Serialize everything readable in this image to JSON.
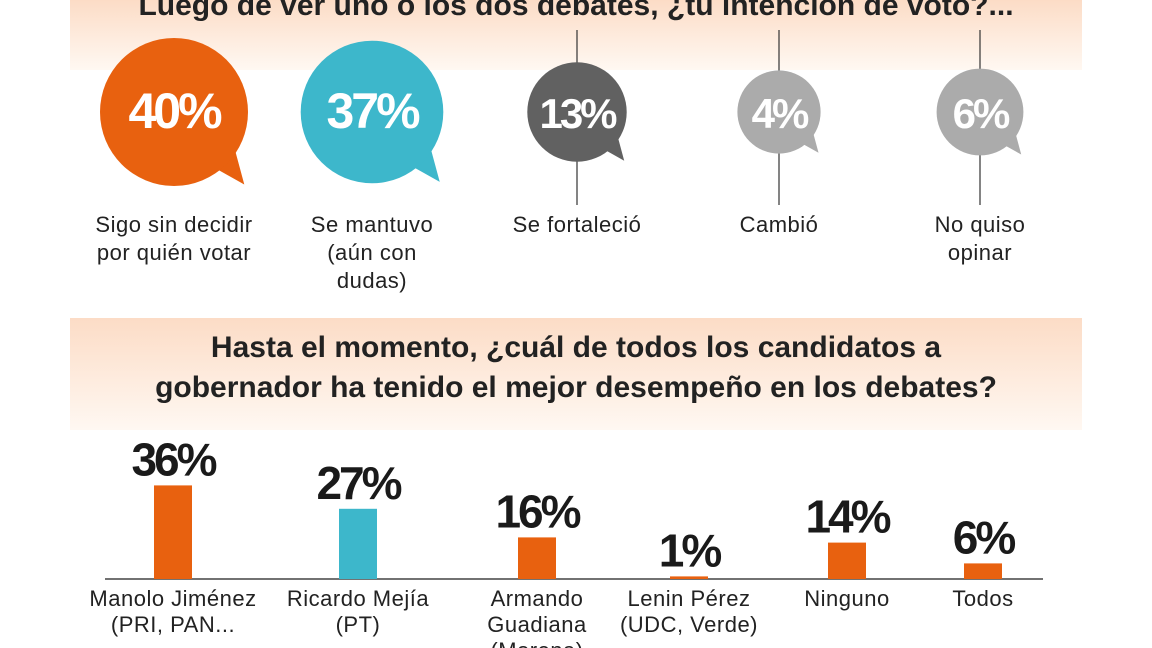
{
  "chart_data": [
    {
      "type": "callout",
      "title": "Luego de ver uno o los dos debates, ¿tu intención de voto?...",
      "categories": [
        "Sigo sin decidir por quién votar",
        "Se mantuvo (aún con dudas)",
        "Se fortaleció",
        "Cambió",
        "No quiso opinar"
      ],
      "values": [
        40,
        37,
        13,
        4,
        6
      ],
      "value_labels": [
        "40%",
        "37%",
        "13%",
        "4%",
        "6%"
      ],
      "colors": [
        "#e8610f",
        "#3db7cb",
        "#616161",
        "#ababab",
        "#ababab"
      ]
    },
    {
      "type": "bar",
      "title": "Hasta el momento, ¿cuál de todos los candidatos a gobernador ha tenido el mejor desempeño en los debates?",
      "categories": [
        "Manolo Jiménez (PRI, PAN...",
        "Ricardo Mejía (PT)",
        "Armando Guadiana (Morena)",
        "Lenin Pérez (UDC, Verde)",
        "Ninguno",
        "Todos"
      ],
      "values": [
        36,
        27,
        16,
        1,
        14,
        6
      ],
      "value_labels": [
        "36%",
        "27%",
        "16%",
        "1%",
        "14%",
        "6%"
      ],
      "colors": [
        "#e8610f",
        "#3db7cb",
        "#e8610f",
        "#e8610f",
        "#e8610f",
        "#e8610f"
      ]
    }
  ]
}
